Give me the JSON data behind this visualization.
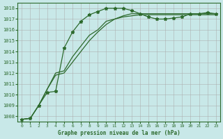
{
  "xlabel": "Graphe pression niveau de la mer (hPa)",
  "bg_color": "#c8e8e8",
  "grid_color": "#aaaaaa",
  "line_color": "#2d6a2d",
  "ylim": [
    1007.5,
    1018.5
  ],
  "xlim": [
    -0.5,
    23.5
  ],
  "yticks": [
    1008,
    1009,
    1010,
    1011,
    1012,
    1013,
    1014,
    1015,
    1016,
    1017,
    1018
  ],
  "xticks": [
    0,
    1,
    2,
    3,
    4,
    5,
    6,
    7,
    8,
    9,
    10,
    11,
    12,
    13,
    14,
    15,
    16,
    17,
    18,
    19,
    20,
    21,
    22,
    23
  ],
  "series1": [
    1007.7,
    1007.8,
    1009.0,
    1010.2,
    1010.3,
    1014.3,
    1015.8,
    1016.8,
    1017.4,
    1017.7,
    1018.0,
    1018.0,
    1018.0,
    1017.8,
    1017.5,
    1017.2,
    1017.0,
    1017.0,
    1017.1,
    1017.2,
    1017.5,
    1017.5,
    1017.6,
    1017.5
  ],
  "series2": [
    1007.7,
    1007.8,
    1009.0,
    1010.5,
    1012.0,
    1012.2,
    1013.5,
    1014.5,
    1015.5,
    1016.0,
    1016.8,
    1017.0,
    1017.3,
    1017.5,
    1017.5,
    1017.5,
    1017.5,
    1017.5,
    1017.5,
    1017.5,
    1017.5,
    1017.5,
    1017.5,
    1017.5
  ],
  "series3": [
    1007.7,
    1007.8,
    1009.0,
    1010.5,
    1011.8,
    1012.0,
    1013.0,
    1014.0,
    1015.0,
    1015.8,
    1016.5,
    1017.0,
    1017.2,
    1017.3,
    1017.4,
    1017.4,
    1017.4,
    1017.4,
    1017.4,
    1017.4,
    1017.4,
    1017.4,
    1017.4,
    1017.4
  ]
}
